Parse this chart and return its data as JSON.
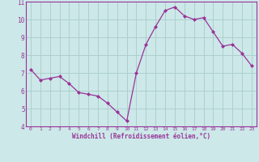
{
  "x_vals": [
    0,
    1,
    2,
    3,
    4,
    5,
    6,
    7,
    8,
    9,
    10,
    11,
    12,
    13,
    14,
    15,
    16,
    17,
    18,
    19,
    20,
    21,
    22,
    23
  ],
  "y_vals": [
    7.2,
    6.6,
    6.7,
    6.8,
    6.4,
    5.9,
    5.8,
    5.7,
    5.3,
    4.8,
    4.3,
    7.0,
    8.6,
    9.6,
    10.5,
    10.7,
    10.2,
    10.0,
    10.1,
    9.3,
    8.5,
    8.6,
    8.1,
    7.4
  ],
  "xlabel": "Windchill (Refroidissement éolien,°C)",
  "ylim": [
    4,
    11
  ],
  "xlim": [
    -0.5,
    23.5
  ],
  "yticks": [
    4,
    5,
    6,
    7,
    8,
    9,
    10,
    11
  ],
  "xticks": [
    0,
    1,
    2,
    3,
    4,
    5,
    6,
    7,
    8,
    9,
    10,
    11,
    12,
    13,
    14,
    15,
    16,
    17,
    18,
    19,
    20,
    21,
    22,
    23
  ],
  "line_color": "#993399",
  "marker_color": "#993399",
  "bg_color": "#cce8e8",
  "grid_color": "#aacccc",
  "axis_label_color": "#993399",
  "tick_label_color": "#993399",
  "spine_color": "#993399"
}
